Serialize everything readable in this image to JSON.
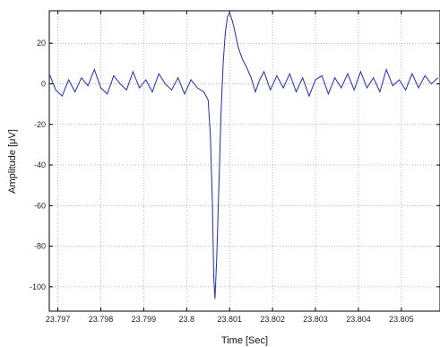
{
  "chart_data": {
    "type": "line",
    "title": "",
    "xlabel": "Time [Sec]",
    "ylabel": "Amplitude [μV]",
    "xlim": [
      23.7968,
      23.8059
    ],
    "ylim": [
      -112,
      36
    ],
    "xticks": [
      23.797,
      23.798,
      23.799,
      23.8,
      23.801,
      23.802,
      23.803,
      23.804,
      23.805
    ],
    "xtick_labels": [
      "23.797",
      "23.798",
      "23.799",
      "23.8",
      "23.801",
      "23.802",
      "23.803",
      "23.804",
      "23.805"
    ],
    "yticks": [
      20,
      0,
      -20,
      -40,
      -60,
      -80,
      -100
    ],
    "ytick_labels": [
      "20",
      "0",
      "-20",
      "-40",
      "-60",
      "-80",
      "-100"
    ],
    "grid": true,
    "color": "#1a2ccc",
    "series": [
      {
        "x": [
          23.7968,
          23.79695,
          23.7971,
          23.79725,
          23.7974,
          23.79755,
          23.7977,
          23.79785,
          23.798,
          23.79815,
          23.7983,
          23.79845,
          23.7986,
          23.79875,
          23.7989,
          23.79905,
          23.7992,
          23.79935,
          23.7995,
          23.79965,
          23.7998,
          23.79995,
          23.8001,
          23.80025,
          23.8004,
          23.8005,
          23.80055,
          23.8006,
          23.80063,
          23.80066,
          23.8007,
          23.80075,
          23.8008,
          23.80085,
          23.8009,
          23.80095,
          23.801,
          23.80105,
          23.8011,
          23.8012,
          23.8013,
          23.8014,
          23.8015,
          23.8016,
          23.8017,
          23.8018,
          23.80195,
          23.8021,
          23.80225,
          23.8024,
          23.80255,
          23.8027,
          23.80285,
          23.803,
          23.80315,
          23.8033,
          23.80345,
          23.8036,
          23.80375,
          23.8039,
          23.80405,
          23.8042,
          23.80435,
          23.8045,
          23.80465,
          23.8048,
          23.80495,
          23.8051,
          23.80525,
          23.8054,
          23.80555,
          23.8057,
          23.80585
        ],
        "y": [
          5,
          -3,
          -6,
          2,
          -4,
          3,
          -1,
          7,
          -2,
          -5,
          4,
          0,
          -3,
          6,
          -2,
          2,
          -4,
          5,
          0,
          -3,
          3,
          -5,
          2,
          -2,
          -4,
          -8,
          -25,
          -60,
          -95,
          -106,
          -85,
          -50,
          -15,
          10,
          25,
          33,
          35,
          32,
          28,
          18,
          12,
          8,
          3,
          -4,
          2,
          6,
          -3,
          4,
          -2,
          5,
          -4,
          3,
          -6,
          2,
          4,
          -5,
          3,
          -2,
          5,
          -3,
          6,
          -2,
          3,
          -4,
          7,
          -1,
          2,
          -3,
          5,
          -2,
          4,
          0,
          3
        ]
      }
    ]
  }
}
